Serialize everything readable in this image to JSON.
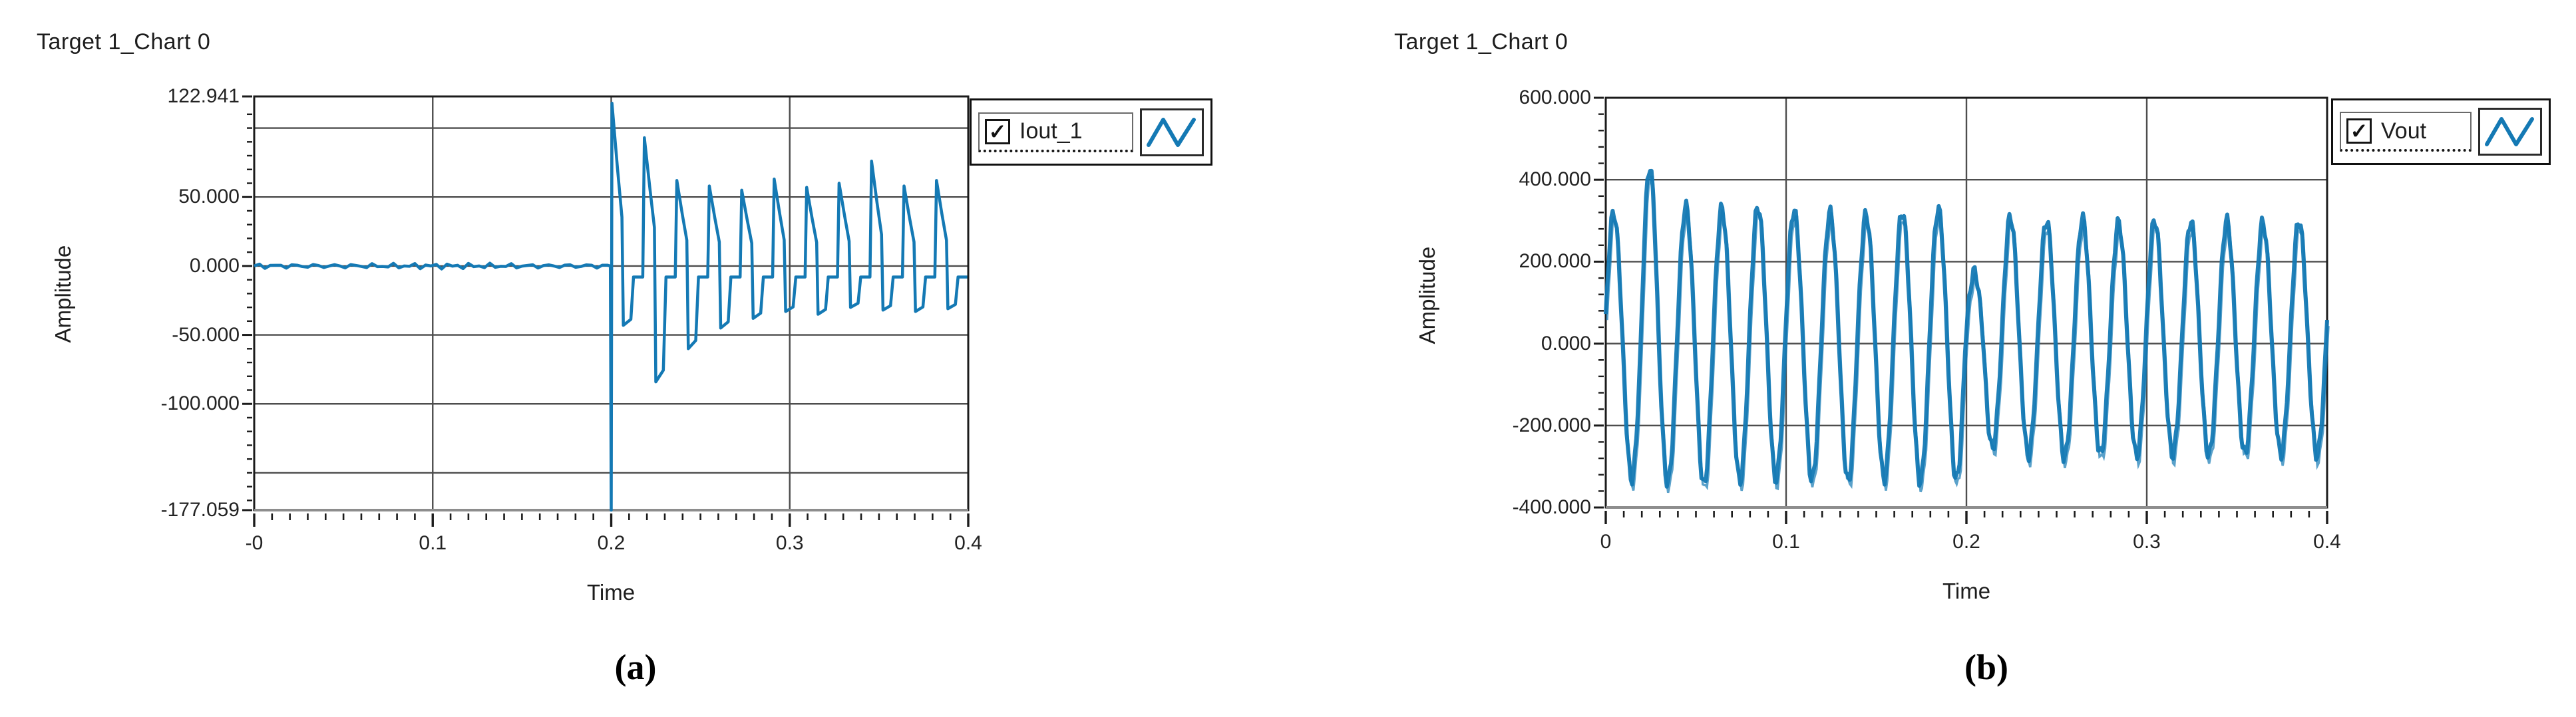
{
  "figure": {
    "captions": {
      "a": "(a)",
      "b": "(b)"
    }
  },
  "ui": {
    "trace_color": "#1479b4",
    "grid_color": "#4d4d4d",
    "border_color": "#1b1b1b",
    "axis_bottom_shadow_color": "#8d8d8d",
    "text_color": "#232323",
    "legend_checkmark": "✓"
  },
  "chart_data": [
    {
      "type": "line",
      "panel": "a",
      "title": "Target 1_Chart 0",
      "xlabel": "Time",
      "ylabel": "Amplitude",
      "legend": {
        "entry": "Iout_1",
        "checkbox_checked": true,
        "style_icon": "zigzag-wave",
        "position": "top-right"
      },
      "x_axis": {
        "min": 0,
        "max": 0.4,
        "tick_values": [
          0,
          0.1,
          0.2,
          0.3,
          0.4
        ],
        "tick_labels": [
          "-0",
          "0.1",
          "0.2",
          "0.3",
          "0.4"
        ],
        "minor_tick_step": 0.01,
        "grid_values": [
          0.1,
          0.2,
          0.3
        ]
      },
      "y_axis": {
        "min": -177.059,
        "max": 122.941,
        "tick_values": [
          122.941,
          50,
          0,
          -50,
          -100,
          -177.059
        ],
        "tick_labels": [
          "122.941",
          "50.000",
          "0.000",
          "-50.000",
          "-100.000",
          "-177.059"
        ],
        "minor_tick_step": 10,
        "grid_values": [
          100,
          50,
          0,
          -50,
          -100,
          -150
        ]
      },
      "series": [
        {
          "name": "Iout_1",
          "color": "#1479b4",
          "description": "Flat near 0 until t=0.2; narrow transient spike down to -177.059 at t=0.2; then periodic decaying sawtooth current pulses with negative undershoot settling toward steady state",
          "baseline_value": -8,
          "noise_amplitude": 2.2,
          "transient": {
            "t": 0.2,
            "min": -177.059
          },
          "pulses": {
            "start_t": 0.2,
            "period": 0.01818,
            "peaks": [
              118,
              93,
              62,
              58,
              55,
              63,
              57,
              60,
              76,
              58,
              62
            ],
            "dips": [
              -43,
              -84,
              -60,
              -45,
              -38,
              -33,
              -35,
              -30,
              -32,
              -33,
              -31
            ]
          }
        }
      ]
    },
    {
      "type": "line",
      "panel": "b",
      "title": "Target 1_Chart 0",
      "xlabel": "Time",
      "ylabel": "Amplitude",
      "legend": {
        "entry": "Vout",
        "checkbox_checked": true,
        "style_icon": "zigzag-wave",
        "position": "top-right"
      },
      "x_axis": {
        "min": 0,
        "max": 0.4,
        "tick_values": [
          0,
          0.1,
          0.2,
          0.3,
          0.4
        ],
        "tick_labels": [
          "0",
          "0.1",
          "0.2",
          "0.3",
          "0.4"
        ],
        "minor_tick_step": 0.01,
        "grid_values": [
          0.1,
          0.2,
          0.3
        ]
      },
      "y_axis": {
        "min": -400,
        "max": 600,
        "tick_values": [
          600,
          400,
          200,
          0,
          -200,
          -400
        ],
        "tick_labels": [
          "600.000",
          "400.000",
          "200.000",
          "0.000",
          "-200.000",
          "-400.000"
        ],
        "minor_tick_step": 40,
        "grid_values": [
          400,
          200,
          0,
          -200
        ]
      },
      "series": [
        {
          "name": "Vout",
          "color": "#1479b4",
          "description": "~50 Hz distorted sinusoidal output voltage; peaks ~+320 / troughs ~-335 before t=0.2 with one higher peak ~430 near t=0.025; amplitude steps down to ~+300 / -272 after t=0.2",
          "period": 0.02,
          "phase_offset_rad": 0.2,
          "ripple_amplitude": 16,
          "cycles_peak_trough": [
            [
              320,
              -330
            ],
            [
              430,
              -340
            ],
            [
              335,
              -345
            ],
            [
              330,
              -335
            ],
            [
              335,
              -330
            ],
            [
              325,
              -332
            ],
            [
              320,
              -336
            ],
            [
              315,
              -330
            ],
            [
              322,
              -336
            ],
            [
              328,
              -332
            ],
            [
              175,
              -255
            ],
            [
              310,
              -272
            ],
            [
              300,
              -278
            ],
            [
              305,
              -270
            ],
            [
              295,
              -274
            ],
            [
              302,
              -270
            ],
            [
              298,
              -272
            ],
            [
              300,
              -268
            ],
            [
              296,
              -270
            ],
            [
              300,
              -272
            ]
          ]
        }
      ]
    }
  ]
}
